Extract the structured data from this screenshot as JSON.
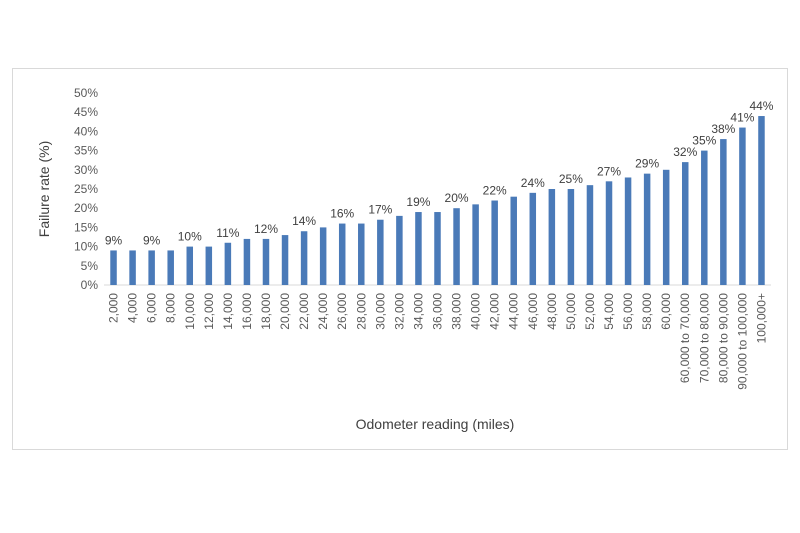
{
  "chart_data": {
    "type": "bar",
    "title": "",
    "xlabel": "Odometer reading (miles)",
    "ylabel": "Failure rate (%)",
    "ylim": [
      0,
      0.5
    ],
    "y_tick_labels": [
      "0%",
      "5%",
      "10%",
      "15%",
      "20%",
      "25%",
      "30%",
      "35%",
      "40%",
      "45%",
      "50%"
    ],
    "grid": false,
    "legend": "none",
    "bar_color": "#4a7ab8",
    "categories": [
      "2,000",
      "4,000",
      "6,000",
      "8,000",
      "10,000",
      "12,000",
      "14,000",
      "16,000",
      "18,000",
      "20,000",
      "22,000",
      "24,000",
      "26,000",
      "28,000",
      "30,000",
      "32,000",
      "34,000",
      "36,000",
      "38,000",
      "40,000",
      "42,000",
      "44,000",
      "46,000",
      "48,000",
      "50,000",
      "52,000",
      "54,000",
      "56,000",
      "58,000",
      "60,000",
      "60,000 to 70,000",
      "70,000 to 80,000",
      "80,000 to 90,000",
      "90,000 to 100,000",
      "100,000+"
    ],
    "values": [
      0.09,
      0.09,
      0.09,
      0.09,
      0.1,
      0.1,
      0.11,
      0.12,
      0.12,
      0.13,
      0.14,
      0.15,
      0.16,
      0.16,
      0.17,
      0.18,
      0.19,
      0.19,
      0.2,
      0.21,
      0.22,
      0.23,
      0.24,
      0.25,
      0.25,
      0.26,
      0.27,
      0.28,
      0.29,
      0.3,
      0.32,
      0.35,
      0.38,
      0.41,
      0.44
    ],
    "data_labels": [
      {
        "index": 0,
        "text": "9%"
      },
      {
        "index": 2,
        "text": "9%"
      },
      {
        "index": 4,
        "text": "10%"
      },
      {
        "index": 6,
        "text": "11%"
      },
      {
        "index": 8,
        "text": "12%"
      },
      {
        "index": 10,
        "text": "14%"
      },
      {
        "index": 12,
        "text": "16%"
      },
      {
        "index": 14,
        "text": "17%"
      },
      {
        "index": 16,
        "text": "19%"
      },
      {
        "index": 18,
        "text": "20%"
      },
      {
        "index": 20,
        "text": "22%"
      },
      {
        "index": 22,
        "text": "24%"
      },
      {
        "index": 24,
        "text": "25%"
      },
      {
        "index": 26,
        "text": "27%"
      },
      {
        "index": 28,
        "text": "29%"
      },
      {
        "index": 30,
        "text": "32%"
      },
      {
        "index": 31,
        "text": "35%"
      },
      {
        "index": 32,
        "text": "38%"
      },
      {
        "index": 33,
        "text": "41%"
      },
      {
        "index": 34,
        "text": "44%"
      }
    ]
  }
}
